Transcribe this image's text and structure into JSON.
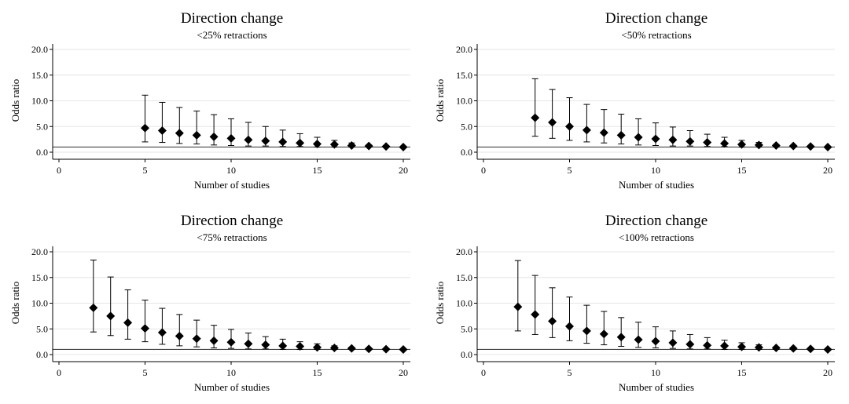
{
  "chart_data": [
    {
      "type": "scatter",
      "title": "Direction change",
      "subtitle": "<25% retractions",
      "xlabel": "Number of studies",
      "ylabel": "Odds ratio",
      "xlim": [
        0,
        20
      ],
      "ylim": [
        0,
        20
      ],
      "xticks": [
        "0",
        "5",
        "10",
        "15",
        "20"
      ],
      "yticks": [
        "0.0",
        "5.0",
        "10.0",
        "15.0",
        "20.0"
      ],
      "reference_line": 1,
      "grid": true,
      "points": [
        {
          "x": 5,
          "y": 4.7,
          "lo": 2.0,
          "hi": 11.1
        },
        {
          "x": 6,
          "y": 4.2,
          "lo": 1.9,
          "hi": 9.7
        },
        {
          "x": 7,
          "y": 3.7,
          "lo": 1.7,
          "hi": 8.7
        },
        {
          "x": 8,
          "y": 3.3,
          "lo": 1.6,
          "hi": 8.0
        },
        {
          "x": 9,
          "y": 3.0,
          "lo": 1.4,
          "hi": 7.3
        },
        {
          "x": 10,
          "y": 2.7,
          "lo": 1.3,
          "hi": 6.5
        },
        {
          "x": 11,
          "y": 2.4,
          "lo": 1.2,
          "hi": 5.8
        },
        {
          "x": 12,
          "y": 2.2,
          "lo": 1.2,
          "hi": 5.0
        },
        {
          "x": 13,
          "y": 2.0,
          "lo": 1.1,
          "hi": 4.3
        },
        {
          "x": 14,
          "y": 1.8,
          "lo": 1.1,
          "hi": 3.6
        },
        {
          "x": 15,
          "y": 1.6,
          "lo": 1.0,
          "hi": 2.9
        },
        {
          "x": 16,
          "y": 1.5,
          "lo": 1.0,
          "hi": 2.3
        },
        {
          "x": 17,
          "y": 1.3,
          "lo": 1.0,
          "hi": 1.8
        },
        {
          "x": 18,
          "y": 1.2,
          "lo": 1.0,
          "hi": 1.4
        },
        {
          "x": 19,
          "y": 1.1,
          "lo": 1.0,
          "hi": 1.2
        },
        {
          "x": 20,
          "y": 1.0,
          "lo": 1.0,
          "hi": 1.0
        }
      ]
    },
    {
      "type": "scatter",
      "title": "Direction change",
      "subtitle": "<50% retractions",
      "xlabel": "Number of studies",
      "ylabel": "Odds ratio",
      "xlim": [
        0,
        20
      ],
      "ylim": [
        0,
        20
      ],
      "xticks": [
        "0",
        "5",
        "10",
        "15",
        "20"
      ],
      "yticks": [
        "0.0",
        "5.0",
        "10.0",
        "15.0",
        "20.0"
      ],
      "reference_line": 1,
      "grid": true,
      "points": [
        {
          "x": 3,
          "y": 6.7,
          "lo": 3.1,
          "hi": 14.3
        },
        {
          "x": 4,
          "y": 5.8,
          "lo": 2.7,
          "hi": 12.2
        },
        {
          "x": 5,
          "y": 5.0,
          "lo": 2.3,
          "hi": 10.6
        },
        {
          "x": 6,
          "y": 4.3,
          "lo": 2.0,
          "hi": 9.3
        },
        {
          "x": 7,
          "y": 3.8,
          "lo": 1.8,
          "hi": 8.3
        },
        {
          "x": 8,
          "y": 3.3,
          "lo": 1.6,
          "hi": 7.4
        },
        {
          "x": 9,
          "y": 2.9,
          "lo": 1.4,
          "hi": 6.5
        },
        {
          "x": 10,
          "y": 2.6,
          "lo": 1.3,
          "hi": 5.7
        },
        {
          "x": 11,
          "y": 2.4,
          "lo": 1.2,
          "hi": 4.9
        },
        {
          "x": 12,
          "y": 2.1,
          "lo": 1.2,
          "hi": 4.2
        },
        {
          "x": 13,
          "y": 1.9,
          "lo": 1.1,
          "hi": 3.5
        },
        {
          "x": 14,
          "y": 1.7,
          "lo": 1.1,
          "hi": 2.9
        },
        {
          "x": 15,
          "y": 1.5,
          "lo": 1.0,
          "hi": 2.3
        },
        {
          "x": 16,
          "y": 1.4,
          "lo": 1.0,
          "hi": 1.9
        },
        {
          "x": 17,
          "y": 1.3,
          "lo": 1.0,
          "hi": 1.5
        },
        {
          "x": 18,
          "y": 1.2,
          "lo": 1.0,
          "hi": 1.3
        },
        {
          "x": 19,
          "y": 1.1,
          "lo": 1.0,
          "hi": 1.2
        },
        {
          "x": 20,
          "y": 1.0,
          "lo": 1.0,
          "hi": 1.0
        }
      ]
    },
    {
      "type": "scatter",
      "title": "Direction change",
      "subtitle": "<75% retractions",
      "xlabel": "Number of studies",
      "ylabel": "Odds ratio",
      "xlim": [
        0,
        20
      ],
      "ylim": [
        0,
        20
      ],
      "xticks": [
        "0",
        "5",
        "10",
        "15",
        "20"
      ],
      "yticks": [
        "0.0",
        "5.0",
        "10.0",
        "15.0",
        "20.0"
      ],
      "reference_line": 1,
      "grid": true,
      "points": [
        {
          "x": 2,
          "y": 9.1,
          "lo": 4.4,
          "hi": 18.4
        },
        {
          "x": 3,
          "y": 7.5,
          "lo": 3.7,
          "hi": 15.1
        },
        {
          "x": 4,
          "y": 6.2,
          "lo": 3.0,
          "hi": 12.6
        },
        {
          "x": 5,
          "y": 5.1,
          "lo": 2.5,
          "hi": 10.6
        },
        {
          "x": 6,
          "y": 4.3,
          "lo": 2.0,
          "hi": 9.0
        },
        {
          "x": 7,
          "y": 3.6,
          "lo": 1.7,
          "hi": 7.8
        },
        {
          "x": 8,
          "y": 3.1,
          "lo": 1.5,
          "hi": 6.7
        },
        {
          "x": 9,
          "y": 2.7,
          "lo": 1.3,
          "hi": 5.7
        },
        {
          "x": 10,
          "y": 2.4,
          "lo": 1.2,
          "hi": 4.9
        },
        {
          "x": 11,
          "y": 2.1,
          "lo": 1.1,
          "hi": 4.2
        },
        {
          "x": 12,
          "y": 1.9,
          "lo": 1.1,
          "hi": 3.5
        },
        {
          "x": 13,
          "y": 1.7,
          "lo": 1.0,
          "hi": 3.0
        },
        {
          "x": 14,
          "y": 1.6,
          "lo": 1.0,
          "hi": 2.5
        },
        {
          "x": 15,
          "y": 1.4,
          "lo": 1.0,
          "hi": 2.1
        },
        {
          "x": 16,
          "y": 1.3,
          "lo": 1.0,
          "hi": 1.7
        },
        {
          "x": 17,
          "y": 1.2,
          "lo": 1.0,
          "hi": 1.4
        },
        {
          "x": 18,
          "y": 1.1,
          "lo": 1.0,
          "hi": 1.2
        },
        {
          "x": 19,
          "y": 1.05,
          "lo": 1.0,
          "hi": 1.1
        },
        {
          "x": 20,
          "y": 1.0,
          "lo": 1.0,
          "hi": 1.0
        }
      ]
    },
    {
      "type": "scatter",
      "title": "Direction change",
      "subtitle": "<100% retractions",
      "xlabel": "Number of studies",
      "ylabel": "Odds ratio",
      "xlim": [
        0,
        20
      ],
      "ylim": [
        0,
        20
      ],
      "xticks": [
        "0",
        "5",
        "10",
        "15",
        "20"
      ],
      "yticks": [
        "0.0",
        "5.0",
        "10.0",
        "15.0",
        "20.0"
      ],
      "reference_line": 1,
      "grid": true,
      "points": [
        {
          "x": 2,
          "y": 9.3,
          "lo": 4.6,
          "hi": 18.3
        },
        {
          "x": 3,
          "y": 7.8,
          "lo": 3.9,
          "hi": 15.4
        },
        {
          "x": 4,
          "y": 6.5,
          "lo": 3.3,
          "hi": 13.0
        },
        {
          "x": 5,
          "y": 5.5,
          "lo": 2.7,
          "hi": 11.2
        },
        {
          "x": 6,
          "y": 4.6,
          "lo": 2.2,
          "hi": 9.6
        },
        {
          "x": 7,
          "y": 4.0,
          "lo": 1.9,
          "hi": 8.4
        },
        {
          "x": 8,
          "y": 3.4,
          "lo": 1.6,
          "hi": 7.2
        },
        {
          "x": 9,
          "y": 2.9,
          "lo": 1.4,
          "hi": 6.3
        },
        {
          "x": 10,
          "y": 2.6,
          "lo": 1.3,
          "hi": 5.4
        },
        {
          "x": 11,
          "y": 2.3,
          "lo": 1.2,
          "hi": 4.6
        },
        {
          "x": 12,
          "y": 2.0,
          "lo": 1.1,
          "hi": 3.9
        },
        {
          "x": 13,
          "y": 1.8,
          "lo": 1.1,
          "hi": 3.3
        },
        {
          "x": 14,
          "y": 1.7,
          "lo": 1.0,
          "hi": 2.8
        },
        {
          "x": 15,
          "y": 1.5,
          "lo": 1.0,
          "hi": 2.3
        },
        {
          "x": 16,
          "y": 1.4,
          "lo": 1.0,
          "hi": 1.9
        },
        {
          "x": 17,
          "y": 1.3,
          "lo": 1.0,
          "hi": 1.5
        },
        {
          "x": 18,
          "y": 1.2,
          "lo": 1.0,
          "hi": 1.3
        },
        {
          "x": 19,
          "y": 1.1,
          "lo": 1.0,
          "hi": 1.2
        },
        {
          "x": 20,
          "y": 1.0,
          "lo": 1.0,
          "hi": 1.0
        }
      ]
    }
  ]
}
